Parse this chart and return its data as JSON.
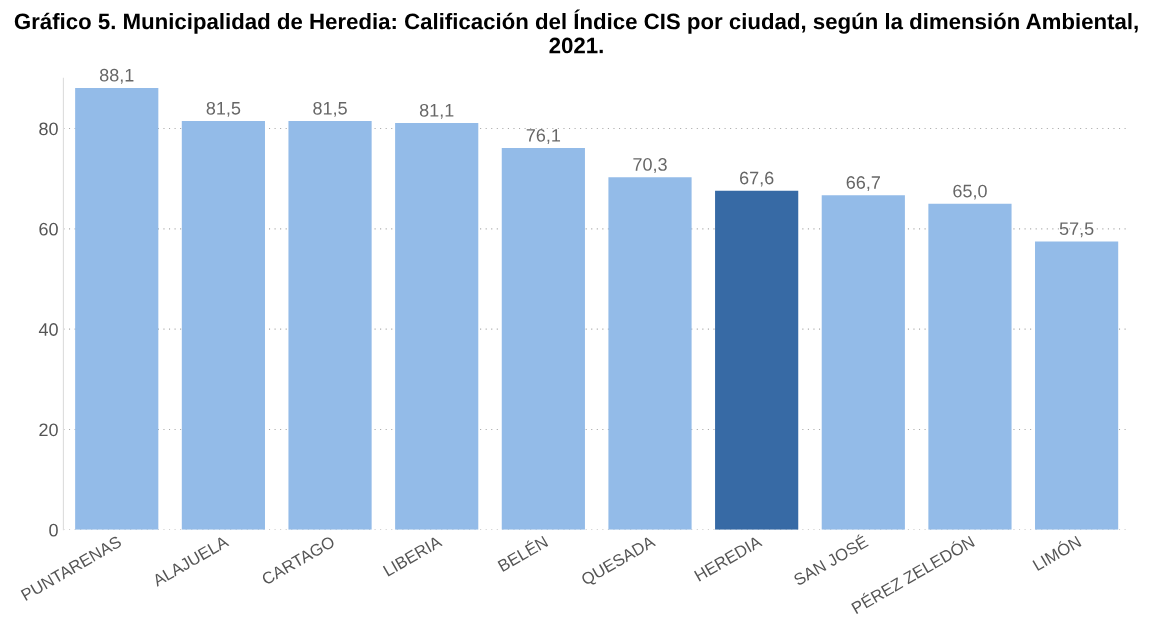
{
  "chart_data": {
    "type": "bar",
    "title": "Gráfico 5. Municipalidad de Heredia: Calificación del Índice CIS por ciudad, según la dimensión Ambiental, 2021.",
    "categories": [
      "PUNTARENAS",
      "ALAJUELA",
      "CARTAGO",
      "LIBERIA",
      "BELÉN",
      "QUESADA",
      "HEREDIA",
      "SAN JOSÉ",
      "PÉREZ ZELEDÓN",
      "LIMÓN"
    ],
    "values": [
      88.1,
      81.5,
      81.5,
      81.1,
      76.1,
      70.3,
      67.6,
      66.7,
      65.0,
      57.5
    ],
    "value_labels": [
      "88,1",
      "81,5",
      "81,5",
      "81,1",
      "76,1",
      "70,3",
      "67,6",
      "66,7",
      "65,0",
      "57,5"
    ],
    "colors": [
      "#93bbe8",
      "#93bbe8",
      "#93bbe8",
      "#93bbe8",
      "#93bbe8",
      "#93bbe8",
      "#376aa5",
      "#93bbe8",
      "#93bbe8",
      "#93bbe8"
    ],
    "ylim": [
      0,
      90
    ],
    "yticks": [
      0,
      20,
      40,
      60,
      80
    ],
    "grid": "y",
    "legend": false
  }
}
